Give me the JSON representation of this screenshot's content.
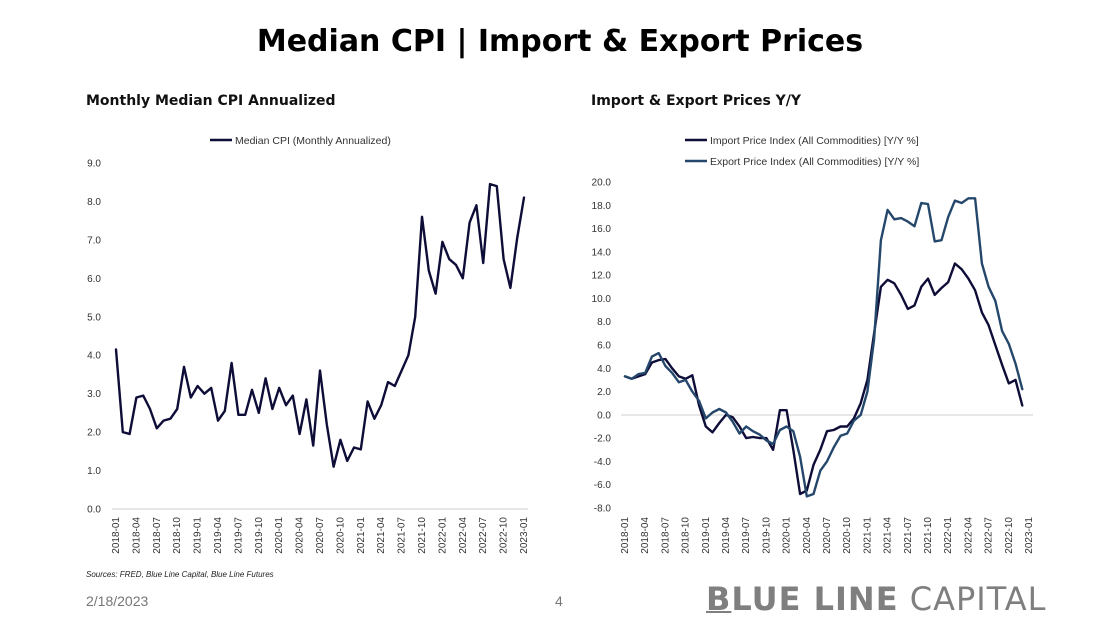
{
  "page": {
    "title": "Median CPI | Import & Export Prices",
    "sources": "Sources: FRED, Blue Line Capital, Blue Line Futures",
    "date": "2/18/2023",
    "page_number": "4",
    "logo": {
      "first": "B",
      "bold": "LUE LINE",
      "rest": " CAPITAL"
    }
  },
  "colors": {
    "import": "#0d0d38",
    "export": "#24476b",
    "median": "#0d0d38",
    "axis": "#cfcfcf"
  },
  "chart_data": [
    {
      "type": "line",
      "title": "Monthly Median CPI Annualized",
      "xlabel": "",
      "ylabel": "",
      "ylim": [
        0,
        9
      ],
      "yticks": [
        "0.0",
        "1.0",
        "2.0",
        "3.0",
        "4.0",
        "5.0",
        "6.0",
        "7.0",
        "8.0",
        "9.0"
      ],
      "x_labels": [
        "2018-01",
        "2018-04",
        "2018-07",
        "2018-10",
        "2019-01",
        "2019-04",
        "2019-07",
        "2019-10",
        "2020-01",
        "2020-04",
        "2020-07",
        "2020-10",
        "2021-01",
        "2021-04",
        "2021-07",
        "2021-10",
        "2022-01",
        "2022-04",
        "2022-07",
        "2022-10",
        "2023-01"
      ],
      "legend_position": "top-center",
      "series": [
        {
          "name": "Median CPI (Monthly Annualized)",
          "x_start": "2018-01",
          "values": [
            4.15,
            2.0,
            1.95,
            2.9,
            2.95,
            2.6,
            2.1,
            2.3,
            2.35,
            2.6,
            3.7,
            2.9,
            3.2,
            3.0,
            3.15,
            2.3,
            2.55,
            3.8,
            2.45,
            2.45,
            3.1,
            2.5,
            3.4,
            2.6,
            3.15,
            2.7,
            2.95,
            1.95,
            2.85,
            1.65,
            3.6,
            2.2,
            1.1,
            1.8,
            1.25,
            1.6,
            1.55,
            2.8,
            2.35,
            2.7,
            3.3,
            3.2,
            3.6,
            4.0,
            5.0,
            7.6,
            6.2,
            5.6,
            6.95,
            6.5,
            6.35,
            6.0,
            7.45,
            7.9,
            6.4,
            8.45,
            8.4,
            6.5,
            5.75,
            7.05,
            8.1
          ]
        }
      ]
    },
    {
      "type": "line",
      "title": "Import & Export Prices Y/Y",
      "xlabel": "",
      "ylabel": "",
      "ylim": [
        -8,
        20
      ],
      "yticks": [
        "-8.0",
        "-6.0",
        "-4.0",
        "-2.0",
        "0.0",
        "2.0",
        "4.0",
        "6.0",
        "8.0",
        "10.0",
        "12.0",
        "14.0",
        "16.0",
        "18.0",
        "20.0"
      ],
      "x_labels": [
        "2018-01",
        "2018-04",
        "2018-07",
        "2018-10",
        "2019-01",
        "2019-04",
        "2019-07",
        "2019-10",
        "2020-01",
        "2020-04",
        "2020-07",
        "2020-10",
        "2021-01",
        "2021-04",
        "2021-07",
        "2021-10",
        "2022-01",
        "2022-04",
        "2022-07",
        "2022-10",
        "2023-01"
      ],
      "legend_position": "top-center",
      "series": [
        {
          "name": "Import Price Index (All Commodities) [Y/Y %]",
          "x_start": "2018-01",
          "values": [
            3.3,
            3.1,
            3.3,
            3.5,
            4.5,
            4.7,
            4.8,
            4.0,
            3.3,
            3.1,
            3.4,
            0.8,
            -1.0,
            -1.5,
            -0.7,
            0.0,
            -0.2,
            -1.0,
            -2.0,
            -1.9,
            -2.0,
            -2.0,
            -3.0,
            0.4,
            0.4,
            -3.0,
            -6.8,
            -6.5,
            -4.3,
            -3.0,
            -1.4,
            -1.3,
            -1.0,
            -1.0,
            -0.3,
            1.0,
            3.0,
            7.0,
            11.0,
            11.6,
            11.3,
            10.3,
            9.1,
            9.4,
            11.0,
            11.7,
            10.3,
            10.9,
            11.4,
            13.0,
            12.5,
            11.7,
            10.7,
            8.8,
            7.7,
            6.0,
            4.3,
            2.7,
            3.0,
            0.8
          ]
        },
        {
          "name": "Export Price Index (All Commodities) [Y/Y %]",
          "x_start": "2018-01",
          "values": [
            3.3,
            3.1,
            3.5,
            3.6,
            5.0,
            5.3,
            4.2,
            3.6,
            2.8,
            3.0,
            2.0,
            1.2,
            -0.3,
            0.2,
            0.5,
            0.2,
            -0.6,
            -1.6,
            -1.0,
            -1.4,
            -1.7,
            -2.2,
            -2.5,
            -1.3,
            -1.0,
            -1.4,
            -3.6,
            -7.0,
            -6.8,
            -4.8,
            -4.0,
            -2.8,
            -1.8,
            -1.6,
            -0.5,
            0.0,
            2.0,
            6.5,
            15.0,
            17.6,
            16.8,
            16.9,
            16.6,
            16.2,
            18.2,
            18.1,
            14.9,
            15.0,
            17.0,
            18.4,
            18.2,
            18.6,
            18.6,
            13.0,
            11.0,
            9.8,
            7.2,
            6.1,
            4.4,
            2.2
          ]
        }
      ]
    }
  ]
}
